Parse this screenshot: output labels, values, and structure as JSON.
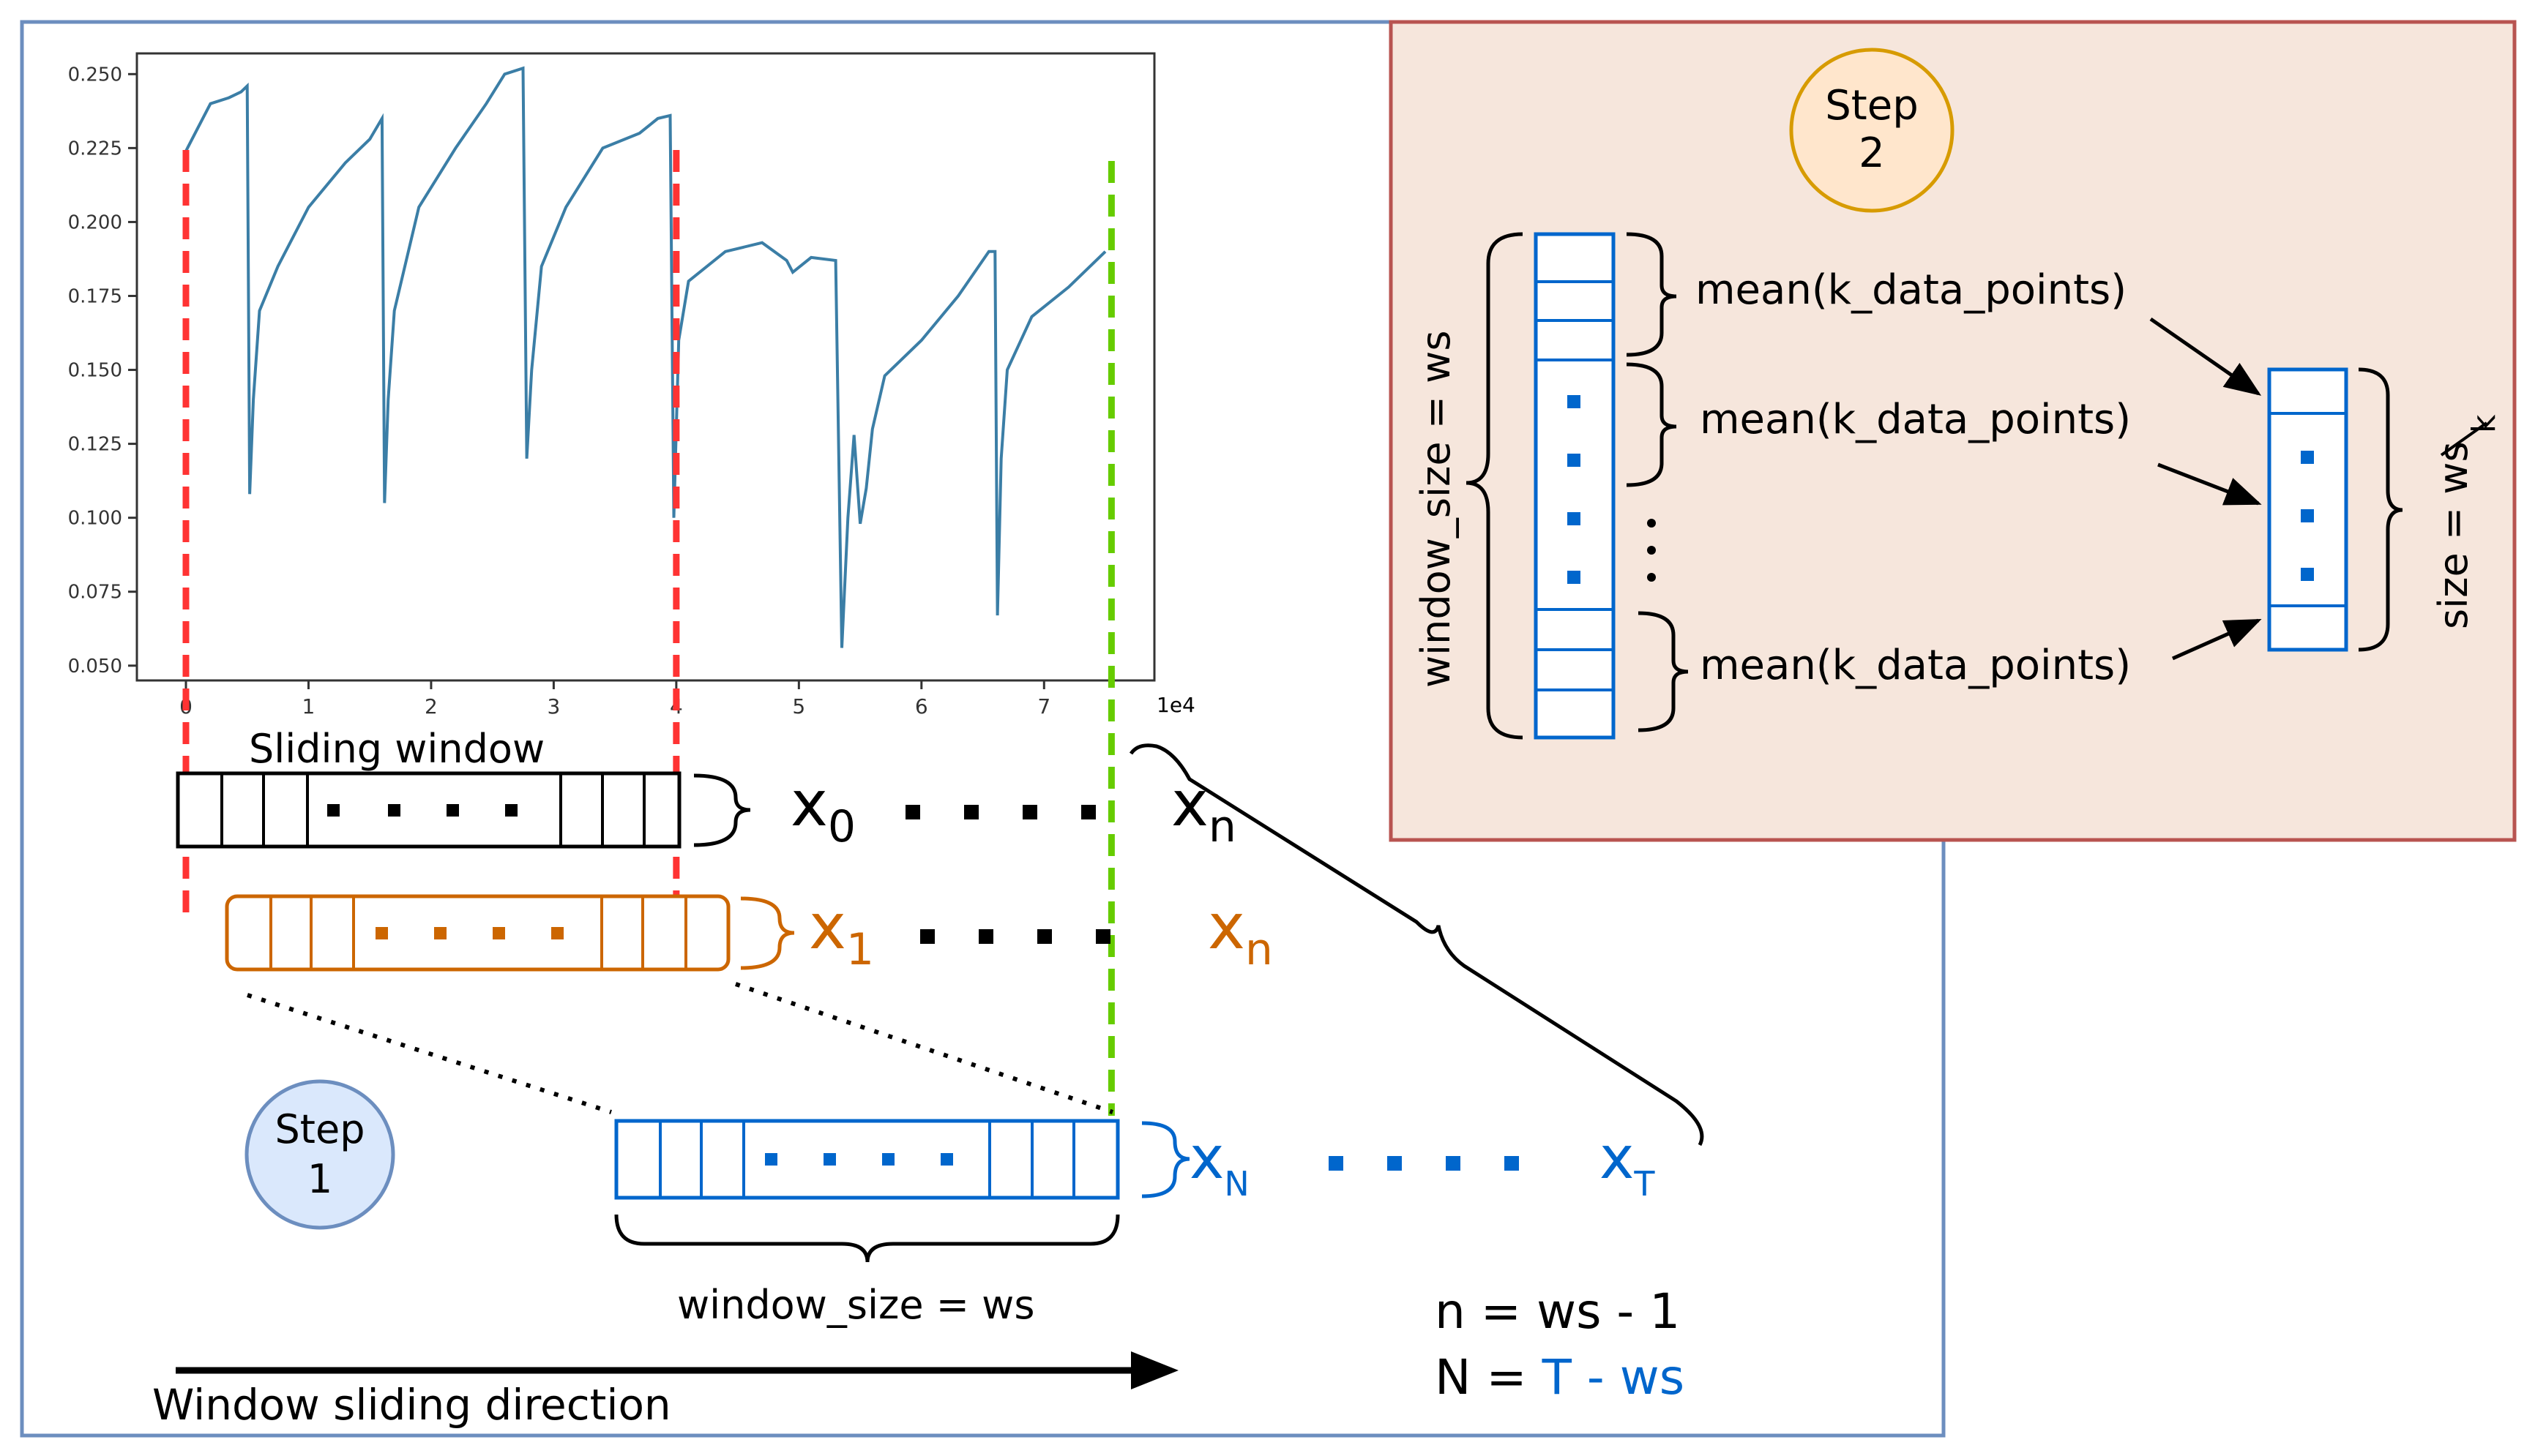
{
  "colors": {
    "black": "#000000",
    "orange": "#cc6600",
    "blue": "#0066cc",
    "red": "#ff3333",
    "green": "#66cc00",
    "series": "#3b7ea6",
    "frame": "#6c8ebf",
    "step2_bg": "#f6e6dc",
    "step2_border": "#b85450",
    "step1_fill": "#dae8fc",
    "step2_circle_fill": "#ffe6cc",
    "step2_circle_stroke": "#d79b00"
  },
  "chart_data": {
    "type": "line",
    "title": "",
    "xlabel": "",
    "ylabel": "",
    "x_multiplier_label": "1e4",
    "xlim": [
      -0.4,
      7.9
    ],
    "ylim": [
      0.045,
      0.257
    ],
    "xticks": [
      0,
      1,
      2,
      3,
      4,
      5,
      6,
      7
    ],
    "xtick_labels": [
      "0",
      "1",
      "2",
      "3",
      "4",
      "5",
      "6",
      "7"
    ],
    "yticks": [
      0.05,
      0.075,
      0.1,
      0.125,
      0.15,
      0.175,
      0.2,
      0.225,
      0.25
    ],
    "ytick_labels": [
      "0.050",
      "0.075",
      "0.100",
      "0.125",
      "0.150",
      "0.175",
      "0.200",
      "0.225",
      "0.250"
    ],
    "series": [
      {
        "name": "signal",
        "x": [
          0.0,
          0.1,
          0.2,
          0.35,
          0.45,
          0.5,
          0.52,
          0.55,
          0.6,
          0.75,
          1.0,
          1.3,
          1.5,
          1.6,
          1.62,
          1.65,
          1.7,
          1.9,
          2.2,
          2.45,
          2.6,
          2.75,
          2.78,
          2.82,
          2.9,
          3.1,
          3.4,
          3.7,
          3.85,
          3.95,
          3.98,
          4.02,
          4.1,
          4.4,
          4.7,
          4.9,
          4.95,
          5.1,
          5.3,
          5.35,
          5.4,
          5.45,
          5.5,
          5.55,
          5.6,
          5.7,
          6.0,
          6.3,
          6.55,
          6.6,
          6.62,
          6.65,
          6.7,
          6.9,
          7.2,
          7.5
        ],
        "values": [
          0.224,
          0.232,
          0.24,
          0.242,
          0.244,
          0.246,
          0.108,
          0.14,
          0.17,
          0.185,
          0.205,
          0.22,
          0.228,
          0.235,
          0.105,
          0.14,
          0.17,
          0.205,
          0.225,
          0.24,
          0.25,
          0.252,
          0.12,
          0.15,
          0.185,
          0.205,
          0.225,
          0.23,
          0.235,
          0.236,
          0.1,
          0.16,
          0.18,
          0.19,
          0.193,
          0.187,
          0.183,
          0.188,
          0.187,
          0.056,
          0.1,
          0.128,
          0.098,
          0.11,
          0.13,
          0.148,
          0.16,
          0.175,
          0.19,
          0.19,
          0.067,
          0.12,
          0.15,
          0.168,
          0.178,
          0.19
        ]
      }
    ],
    "vertical_markers": [
      {
        "name": "window-start",
        "x": 0.0,
        "color": "#ff3333"
      },
      {
        "name": "window-end",
        "x": 4.0,
        "color": "#ff3333"
      },
      {
        "name": "series-end",
        "x": 7.55,
        "color": "#66cc00"
      }
    ]
  },
  "step1": {
    "circle_label_line1": "Step",
    "circle_label_line2": "1",
    "sliding_window_label": "Sliding window",
    "row0": {
      "first": "x",
      "first_sub": "0",
      "last": "x",
      "last_sub": "n"
    },
    "row1": {
      "first": "x",
      "first_sub": "1",
      "last": "x",
      "last_sub": "n"
    },
    "row2": {
      "first": "x",
      "first_sub": "N",
      "last": "x",
      "last_sub": "T"
    },
    "window_size_label": "window_size = ws",
    "eq_n": "n = ws - 1",
    "eq_N_prefix": "N = ",
    "eq_N_suffix": "T - ws",
    "direction_label": "Window sliding direction"
  },
  "step2": {
    "circle_label_line1": "Step",
    "circle_label_line2": "2",
    "window_size_label": "window_size = ws",
    "mean_label_1": "mean(k_data_points)",
    "mean_label_2": "mean(k_data_points)",
    "mean_label_3": "mean(k_data_points)",
    "size_label_prefix": "size = ws",
    "size_label_k": "k"
  }
}
